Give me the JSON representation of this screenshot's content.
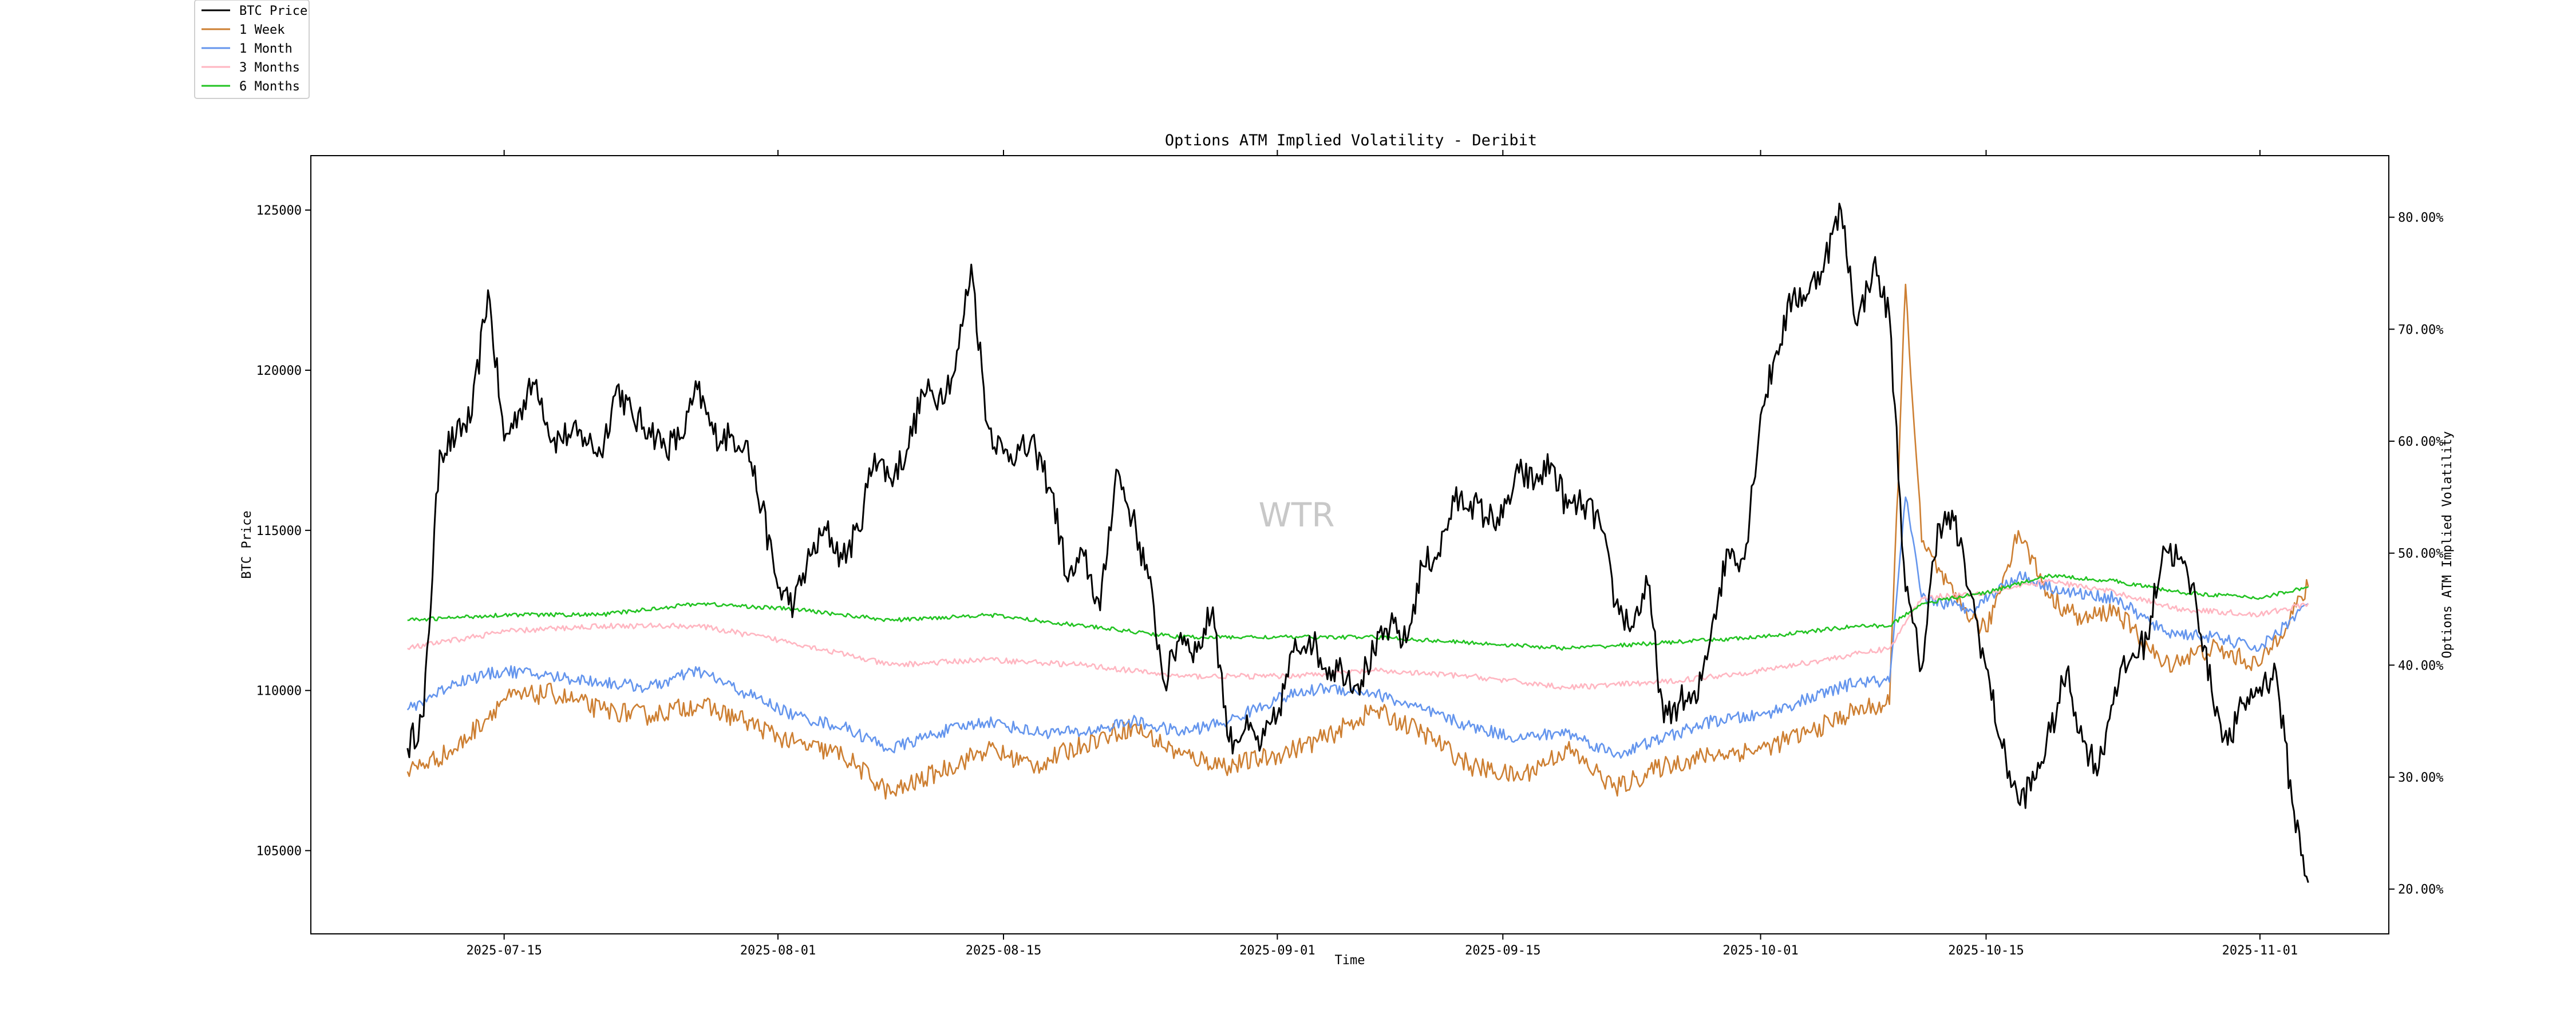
{
  "chart_data": {
    "type": "line",
    "title": "Options ATM Implied Volatility - Deribit",
    "xlabel": "Time",
    "ylabel_left": "BTC Price",
    "ylabel_right": "Options ATM Implied Volatility",
    "watermark": "WTR",
    "legend_placement": "top-left outside",
    "grid": false,
    "x_range": [
      "2025-07-03",
      "2025-11-09"
    ],
    "x_ticks": [
      "2025-07-15",
      "2025-08-01",
      "2025-08-15",
      "2025-09-01",
      "2025-09-15",
      "2025-10-01",
      "2025-10-15",
      "2025-11-01"
    ],
    "ylim_left": [
      102400,
      126700
    ],
    "yticks_left": [
      105000,
      110000,
      115000,
      120000,
      125000
    ],
    "ylim_right": [
      16.0,
      85.5
    ],
    "yticks_right": [
      "20.00%",
      "30.00%",
      "40.00%",
      "50.00%",
      "60.00%",
      "70.00%",
      "80.00%"
    ],
    "yticks_right_values": [
      20,
      30,
      40,
      50,
      60,
      70,
      80
    ],
    "series": [
      {
        "name": "BTC Price",
        "axis": "left",
        "color": "#000000",
        "points": [
          [
            "2025-07-09",
            108200
          ],
          [
            "2025-07-10",
            109200
          ],
          [
            "2025-07-11",
            117500
          ],
          [
            "2025-07-12",
            117900
          ],
          [
            "2025-07-13",
            118600
          ],
          [
            "2025-07-14",
            122500
          ],
          [
            "2025-07-15",
            117800
          ],
          [
            "2025-07-16",
            118800
          ],
          [
            "2025-07-17",
            119700
          ],
          [
            "2025-07-18",
            117800
          ],
          [
            "2025-07-19",
            118000
          ],
          [
            "2025-07-20",
            117900
          ],
          [
            "2025-07-21",
            117400
          ],
          [
            "2025-07-22",
            119500
          ],
          [
            "2025-07-23",
            118500
          ],
          [
            "2025-07-24",
            118200
          ],
          [
            "2025-07-25",
            117600
          ],
          [
            "2025-07-26",
            117900
          ],
          [
            "2025-07-27",
            119400
          ],
          [
            "2025-07-28",
            118000
          ],
          [
            "2025-07-29",
            117900
          ],
          [
            "2025-07-30",
            117800
          ],
          [
            "2025-07-31",
            115700
          ],
          [
            "2025-08-01",
            113200
          ],
          [
            "2025-08-02",
            112700
          ],
          [
            "2025-08-03",
            114200
          ],
          [
            "2025-08-04",
            115000
          ],
          [
            "2025-08-05",
            114100
          ],
          [
            "2025-08-06",
            115000
          ],
          [
            "2025-08-07",
            117400
          ],
          [
            "2025-08-08",
            116600
          ],
          [
            "2025-08-09",
            117500
          ],
          [
            "2025-08-10",
            119300
          ],
          [
            "2025-08-11",
            119200
          ],
          [
            "2025-08-12",
            120000
          ],
          [
            "2025-08-13",
            123300
          ],
          [
            "2025-08-14",
            118300
          ],
          [
            "2025-08-15",
            117400
          ],
          [
            "2025-08-16",
            117500
          ],
          [
            "2025-08-17",
            117500
          ],
          [
            "2025-08-18",
            116200
          ],
          [
            "2025-08-19",
            113400
          ],
          [
            "2025-08-20",
            114200
          ],
          [
            "2025-08-21",
            112500
          ],
          [
            "2025-08-22",
            116900
          ],
          [
            "2025-08-23",
            115400
          ],
          [
            "2025-08-24",
            113500
          ],
          [
            "2025-08-25",
            110200
          ],
          [
            "2025-08-26",
            111800
          ],
          [
            "2025-08-27",
            111200
          ],
          [
            "2025-08-28",
            112600
          ],
          [
            "2025-08-29",
            108400
          ],
          [
            "2025-08-30",
            108800
          ],
          [
            "2025-08-31",
            108300
          ],
          [
            "2025-09-01",
            109200
          ],
          [
            "2025-09-02",
            111200
          ],
          [
            "2025-09-03",
            111700
          ],
          [
            "2025-09-04",
            110700
          ],
          [
            "2025-09-05",
            110700
          ],
          [
            "2025-09-06",
            110200
          ],
          [
            "2025-09-07",
            111200
          ],
          [
            "2025-09-08",
            112000
          ],
          [
            "2025-09-09",
            111500
          ],
          [
            "2025-09-10",
            113900
          ],
          [
            "2025-09-11",
            114300
          ],
          [
            "2025-09-12",
            115900
          ],
          [
            "2025-09-13",
            115900
          ],
          [
            "2025-09-14",
            115400
          ],
          [
            "2025-09-15",
            115400
          ],
          [
            "2025-09-16",
            116800
          ],
          [
            "2025-09-17",
            116500
          ],
          [
            "2025-09-18",
            117100
          ],
          [
            "2025-09-19",
            115700
          ],
          [
            "2025-09-20",
            115800
          ],
          [
            "2025-09-21",
            115300
          ],
          [
            "2025-09-22",
            112700
          ],
          [
            "2025-09-23",
            112000
          ],
          [
            "2025-09-24",
            113300
          ],
          [
            "2025-09-25",
            109000
          ],
          [
            "2025-09-26",
            109700
          ],
          [
            "2025-09-27",
            109600
          ],
          [
            "2025-09-28",
            112100
          ],
          [
            "2025-09-29",
            114400
          ],
          [
            "2025-09-30",
            114100
          ],
          [
            "2025-10-01",
            118600
          ],
          [
            "2025-10-02",
            120600
          ],
          [
            "2025-10-03",
            122300
          ],
          [
            "2025-10-04",
            122400
          ],
          [
            "2025-10-05",
            123500
          ],
          [
            "2025-10-06",
            125000
          ],
          [
            "2025-10-07",
            121400
          ],
          [
            "2025-10-08",
            123300
          ],
          [
            "2025-10-09",
            121700
          ],
          [
            "2025-10-10",
            113100
          ],
          [
            "2025-10-11",
            110700
          ],
          [
            "2025-10-12",
            115200
          ],
          [
            "2025-10-13",
            115300
          ],
          [
            "2025-10-14",
            113100
          ],
          [
            "2025-10-15",
            110700
          ],
          [
            "2025-10-16",
            108200
          ],
          [
            "2025-10-17",
            106500
          ],
          [
            "2025-10-18",
            107200
          ],
          [
            "2025-10-19",
            108700
          ],
          [
            "2025-10-20",
            110600
          ],
          [
            "2025-10-21",
            108400
          ],
          [
            "2025-10-22",
            107600
          ],
          [
            "2025-10-23",
            110100
          ],
          [
            "2025-10-24",
            111000
          ],
          [
            "2025-10-25",
            111600
          ],
          [
            "2025-10-26",
            114500
          ],
          [
            "2025-10-27",
            114100
          ],
          [
            "2025-10-28",
            112900
          ],
          [
            "2025-10-29",
            110000
          ],
          [
            "2025-10-30",
            108300
          ],
          [
            "2025-10-31",
            109600
          ],
          [
            "2025-11-01",
            110100
          ],
          [
            "2025-11-02",
            110600
          ],
          [
            "2025-11-03",
            106500
          ],
          [
            "2025-11-04",
            104000
          ]
        ]
      },
      {
        "name": "1 Week",
        "axis": "right",
        "color": "#cd7f32",
        "points": [
          [
            "2025-07-09",
            30.5
          ],
          [
            "2025-07-12",
            32.5
          ],
          [
            "2025-07-15",
            37.0
          ],
          [
            "2025-07-18",
            37.5
          ],
          [
            "2025-07-21",
            36.0
          ],
          [
            "2025-07-24",
            35.5
          ],
          [
            "2025-07-27",
            36.5
          ],
          [
            "2025-07-30",
            35.0
          ],
          [
            "2025-08-02",
            33.0
          ],
          [
            "2025-08-05",
            32.0
          ],
          [
            "2025-08-08",
            28.5
          ],
          [
            "2025-08-11",
            30.5
          ],
          [
            "2025-08-14",
            32.5
          ],
          [
            "2025-08-17",
            31.0
          ],
          [
            "2025-08-20",
            33.0
          ],
          [
            "2025-08-23",
            34.5
          ],
          [
            "2025-08-26",
            32.0
          ],
          [
            "2025-08-29",
            31.0
          ],
          [
            "2025-09-01",
            32.0
          ],
          [
            "2025-09-04",
            33.5
          ],
          [
            "2025-09-07",
            36.0
          ],
          [
            "2025-09-10",
            34.0
          ],
          [
            "2025-09-13",
            31.0
          ],
          [
            "2025-09-16",
            30.0
          ],
          [
            "2025-09-19",
            32.5
          ],
          [
            "2025-09-22",
            29.0
          ],
          [
            "2025-09-25",
            31.0
          ],
          [
            "2025-09-28",
            32.0
          ],
          [
            "2025-10-01",
            32.5
          ],
          [
            "2025-10-04",
            34.0
          ],
          [
            "2025-10-07",
            36.0
          ],
          [
            "2025-10-09",
            36.5
          ],
          [
            "2025-10-10",
            74.0
          ],
          [
            "2025-10-11",
            51.0
          ],
          [
            "2025-10-13",
            46.0
          ],
          [
            "2025-10-15",
            43.0
          ],
          [
            "2025-10-17",
            52.0
          ],
          [
            "2025-10-19",
            46.0
          ],
          [
            "2025-10-21",
            44.0
          ],
          [
            "2025-10-23",
            45.0
          ],
          [
            "2025-10-26",
            40.0
          ],
          [
            "2025-10-29",
            41.5
          ],
          [
            "2025-11-01",
            40.0
          ],
          [
            "2025-11-04",
            47.0
          ]
        ]
      },
      {
        "name": "1 Month",
        "axis": "right",
        "color": "#6495ed",
        "points": [
          [
            "2025-07-09",
            36.0
          ],
          [
            "2025-07-12",
            38.5
          ],
          [
            "2025-07-15",
            39.5
          ],
          [
            "2025-07-18",
            39.0
          ],
          [
            "2025-07-21",
            38.5
          ],
          [
            "2025-07-24",
            38.0
          ],
          [
            "2025-07-27",
            39.5
          ],
          [
            "2025-07-30",
            37.5
          ],
          [
            "2025-08-02",
            35.5
          ],
          [
            "2025-08-05",
            34.5
          ],
          [
            "2025-08-08",
            32.5
          ],
          [
            "2025-08-11",
            34.0
          ],
          [
            "2025-08-14",
            35.0
          ],
          [
            "2025-08-17",
            34.0
          ],
          [
            "2025-08-20",
            34.0
          ],
          [
            "2025-08-23",
            35.0
          ],
          [
            "2025-08-26",
            34.0
          ],
          [
            "2025-08-29",
            35.0
          ],
          [
            "2025-09-01",
            37.0
          ],
          [
            "2025-09-04",
            38.0
          ],
          [
            "2025-09-07",
            37.5
          ],
          [
            "2025-09-10",
            36.0
          ],
          [
            "2025-09-13",
            34.5
          ],
          [
            "2025-09-16",
            33.5
          ],
          [
            "2025-09-19",
            34.0
          ],
          [
            "2025-09-22",
            32.0
          ],
          [
            "2025-09-25",
            33.5
          ],
          [
            "2025-09-28",
            35.0
          ],
          [
            "2025-10-01",
            35.5
          ],
          [
            "2025-10-04",
            37.0
          ],
          [
            "2025-10-07",
            38.5
          ],
          [
            "2025-10-09",
            38.5
          ],
          [
            "2025-10-10",
            55.0
          ],
          [
            "2025-10-11",
            46.0
          ],
          [
            "2025-10-14",
            45.0
          ],
          [
            "2025-10-17",
            48.0
          ],
          [
            "2025-10-20",
            46.5
          ],
          [
            "2025-10-23",
            46.0
          ],
          [
            "2025-10-26",
            43.0
          ],
          [
            "2025-10-29",
            42.5
          ],
          [
            "2025-11-01",
            41.5
          ],
          [
            "2025-11-04",
            45.5
          ]
        ]
      },
      {
        "name": "3 Months",
        "axis": "right",
        "color": "#ffb6c1",
        "points": [
          [
            "2025-07-09",
            41.5
          ],
          [
            "2025-07-15",
            43.0
          ],
          [
            "2025-07-21",
            43.5
          ],
          [
            "2025-07-27",
            43.5
          ],
          [
            "2025-08-02",
            42.0
          ],
          [
            "2025-08-08",
            40.0
          ],
          [
            "2025-08-14",
            40.5
          ],
          [
            "2025-08-20",
            40.0
          ],
          [
            "2025-08-26",
            39.0
          ],
          [
            "2025-09-01",
            39.0
          ],
          [
            "2025-09-07",
            39.5
          ],
          [
            "2025-09-13",
            39.0
          ],
          [
            "2025-09-19",
            38.0
          ],
          [
            "2025-09-25",
            38.5
          ],
          [
            "2025-10-01",
            39.5
          ],
          [
            "2025-10-07",
            41.0
          ],
          [
            "2025-10-09",
            41.5
          ],
          [
            "2025-10-11",
            46.0
          ],
          [
            "2025-10-15",
            46.5
          ],
          [
            "2025-10-19",
            47.5
          ],
          [
            "2025-10-23",
            46.5
          ],
          [
            "2025-10-27",
            45.0
          ],
          [
            "2025-11-01",
            44.5
          ],
          [
            "2025-11-04",
            45.5
          ]
        ]
      },
      {
        "name": "6 Months",
        "axis": "right",
        "color": "#22c322",
        "points": [
          [
            "2025-07-09",
            44.0
          ],
          [
            "2025-07-15",
            44.5
          ],
          [
            "2025-07-21",
            44.5
          ],
          [
            "2025-07-27",
            45.5
          ],
          [
            "2025-08-02",
            45.0
          ],
          [
            "2025-08-08",
            44.0
          ],
          [
            "2025-08-14",
            44.5
          ],
          [
            "2025-08-20",
            43.5
          ],
          [
            "2025-08-26",
            42.5
          ],
          [
            "2025-09-01",
            42.5
          ],
          [
            "2025-09-07",
            42.5
          ],
          [
            "2025-09-13",
            42.0
          ],
          [
            "2025-09-19",
            41.5
          ],
          [
            "2025-09-25",
            42.0
          ],
          [
            "2025-10-01",
            42.5
          ],
          [
            "2025-10-07",
            43.5
          ],
          [
            "2025-10-09",
            43.5
          ],
          [
            "2025-10-11",
            45.5
          ],
          [
            "2025-10-15",
            46.5
          ],
          [
            "2025-10-19",
            48.0
          ],
          [
            "2025-10-23",
            47.5
          ],
          [
            "2025-10-27",
            46.5
          ],
          [
            "2025-11-01",
            46.0
          ],
          [
            "2025-11-04",
            47.0
          ]
        ]
      }
    ]
  }
}
